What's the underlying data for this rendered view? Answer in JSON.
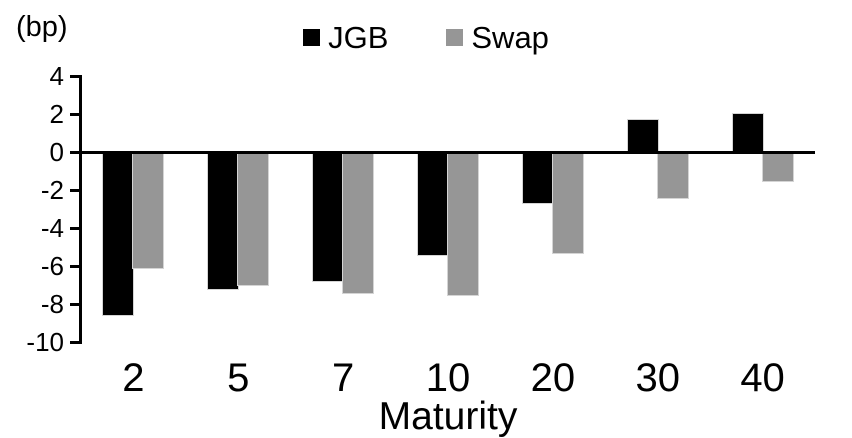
{
  "chart_data": {
    "type": "bar",
    "title": "",
    "xlabel": "Maturity",
    "ylabel": "(bp)",
    "categories": [
      "2",
      "5",
      "7",
      "10",
      "20",
      "30",
      "40"
    ],
    "series": [
      {
        "name": "JGB",
        "color": "#000000",
        "values": [
          -8.6,
          -7.2,
          -6.8,
          -5.4,
          -2.7,
          1.7,
          2.0
        ]
      },
      {
        "name": "Swap",
        "color": "#969696",
        "values": [
          -6.1,
          -7.0,
          -7.4,
          -7.5,
          -5.3,
          -2.4,
          -1.5
        ]
      }
    ],
    "ylim": [
      -10,
      4
    ],
    "yticks": [
      4,
      2,
      0,
      -2,
      -4,
      -6,
      -8,
      -10
    ],
    "grid": false,
    "legend_position": "top-center",
    "axis_color": "#000000",
    "background_color": "#ffffff"
  }
}
